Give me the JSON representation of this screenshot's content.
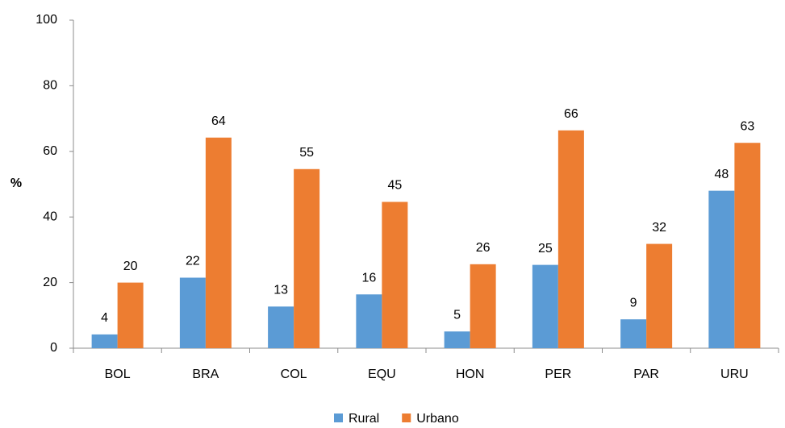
{
  "chart_data": {
    "type": "bar",
    "y_label": "%",
    "categories": [
      "BOL",
      "BRA",
      "COL",
      "EQU",
      "HON",
      "PER",
      "PAR",
      "URU"
    ],
    "series": [
      {
        "name": "Rural",
        "color": "#5b9bd5",
        "values": [
          4.2,
          21.5,
          12.7,
          16.4,
          5.1,
          25.4,
          8.8,
          48
        ],
        "value_labels": [
          "4",
          "22",
          "13",
          "16",
          "5",
          "25",
          "9",
          "48"
        ]
      },
      {
        "name": "Urbano",
        "color": "#ed7d31",
        "values": [
          20,
          64.2,
          54.6,
          44.6,
          25.6,
          66.4,
          31.8,
          62.6
        ],
        "value_labels": [
          "20",
          "64",
          "55",
          "45",
          "26",
          "66",
          "32",
          "63"
        ]
      }
    ],
    "ylim": [
      0,
      100
    ],
    "yticks": [
      0,
      20,
      40,
      60,
      80,
      100
    ],
    "grid": false,
    "legend": "bottom"
  }
}
